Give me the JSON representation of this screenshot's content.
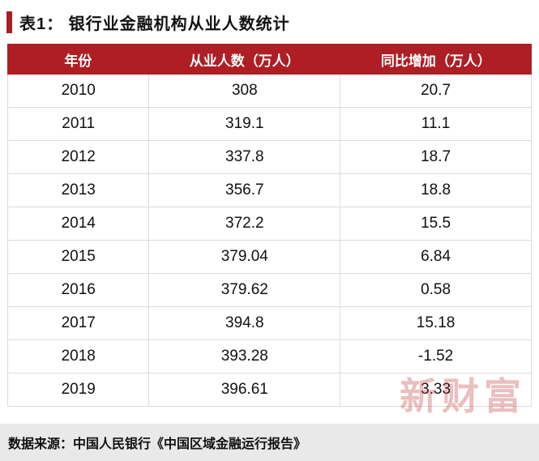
{
  "title": {
    "text": "表1：  银行业金融机构从业人数统计"
  },
  "table": {
    "headers": [
      "年份",
      "从业人数（万人）",
      "同比增加（万人）"
    ],
    "rows": [
      {
        "year": "2010",
        "employees": "308",
        "yoy": "20.7"
      },
      {
        "year": "2011",
        "employees": "319.1",
        "yoy": "11.1"
      },
      {
        "year": "2012",
        "employees": "337.8",
        "yoy": "18.7"
      },
      {
        "year": "2013",
        "employees": "356.7",
        "yoy": "18.8"
      },
      {
        "year": "2014",
        "employees": "372.2",
        "yoy": "15.5"
      },
      {
        "year": "2015",
        "employees": "379.04",
        "yoy": "6.84"
      },
      {
        "year": "2016",
        "employees": "379.62",
        "yoy": "0.58"
      },
      {
        "year": "2017",
        "employees": "394.8",
        "yoy": "15.18"
      },
      {
        "year": "2018",
        "employees": "393.28",
        "yoy": "-1.52"
      },
      {
        "year": "2019",
        "employees": "396.61",
        "yoy": "3.33"
      }
    ]
  },
  "footer": {
    "source": "数据来源：中国人民银行《中国区域金融运行报告》"
  },
  "watermark": {
    "text": "新财富"
  },
  "colors": {
    "header_bg": "#ae1e24",
    "accent_bar": "#a81e22",
    "grid_border": "#dcdcdc",
    "footer_bg": "#e9e9e9",
    "watermark": "#c9474a"
  },
  "chart_data": {
    "type": "table",
    "title": "表1：银行业金融机构从业人数统计",
    "columns": [
      "年份",
      "从业人数（万人）",
      "同比增加（万人）"
    ],
    "rows": [
      [
        "2010",
        308,
        20.7
      ],
      [
        "2011",
        319.1,
        11.1
      ],
      [
        "2012",
        337.8,
        18.7
      ],
      [
        "2013",
        356.7,
        18.8
      ],
      [
        "2014",
        372.2,
        15.5
      ],
      [
        "2015",
        379.04,
        6.84
      ],
      [
        "2016",
        379.62,
        0.58
      ],
      [
        "2017",
        394.8,
        15.18
      ],
      [
        "2018",
        393.28,
        -1.52
      ],
      [
        "2019",
        396.61,
        3.33
      ]
    ],
    "source_note": "数据来源：中国人民银行《中国区域金融运行报告》"
  }
}
